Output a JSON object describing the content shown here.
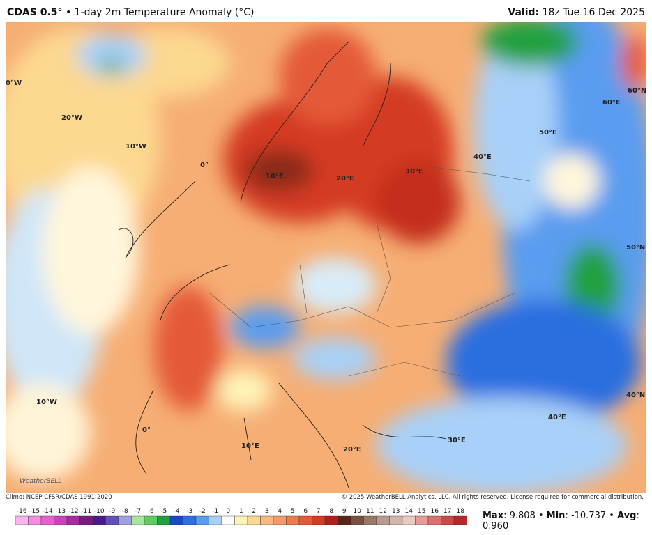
{
  "header": {
    "model": "CDAS 0.5°",
    "title": "• 1-day 2m Temperature Anomaly (°C)",
    "valid_label": "Valid:",
    "valid": "18z Tue 16 Dec 2025"
  },
  "map": {
    "grid_labels": [
      "0°W",
      "20°W",
      "10°W",
      "0°",
      "10°E",
      "20°E",
      "30°E",
      "40°E",
      "50°E",
      "60°E",
      "60°N",
      "50°N",
      "40°N",
      "10°W",
      "0°",
      "10°E",
      "20°E",
      "30°E",
      "40°E"
    ],
    "logo": "WeatherBELL"
  },
  "footer": {
    "climo": "Climo: NCEP CFSR/CDAS 1991-2020",
    "copyright": "© 2025 WeatherBELL Analytics, LLC. All rights reserved. License required for commercial distribution."
  },
  "colorbar": {
    "ticks": [
      -16,
      -15,
      -14,
      -13,
      -12,
      -11,
      -10,
      -9,
      -8,
      -7,
      -6,
      -5,
      -4,
      -3,
      -2,
      -1,
      0,
      1,
      2,
      3,
      4,
      5,
      6,
      7,
      8,
      9,
      10,
      11,
      12,
      13,
      14,
      15,
      16,
      17,
      18
    ],
    "colors": [
      "#fbb4ee",
      "#f58ae0",
      "#e860d0",
      "#d040bc",
      "#a82aa0",
      "#7c1a80",
      "#4a1a8a",
      "#6450b8",
      "#a0a0e0",
      "#a8e6a0",
      "#60cc60",
      "#20a040",
      "#1848c8",
      "#2a6ee0",
      "#5a9cf0",
      "#a8d0f8",
      "#ffffff",
      "#fff4b8",
      "#fcd890",
      "#f9b880",
      "#f49a68",
      "#ee7a50",
      "#e45a38",
      "#d43a24",
      "#b02018",
      "#5a2418",
      "#7a5040",
      "#9a7868",
      "#b89890",
      "#d0b4ac",
      "#e8c8c0",
      "#e89a9a",
      "#dc7070",
      "#cc4848",
      "#b82828"
    ]
  },
  "stats": [
    {
      "label": "Max",
      "value": "9.808"
    },
    {
      "label": "Min",
      "value": "-10.737"
    },
    {
      "label": "Avg",
      "value": "0.960"
    }
  ]
}
